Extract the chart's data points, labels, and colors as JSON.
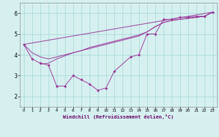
{
  "title": "",
  "xlabel": "Windchill (Refroidissement éolien,°C)",
  "ylabel": "",
  "bg_color": "#d6f0f0",
  "grid_color": "#a8d8d8",
  "line_color": "#993399",
  "xlim": [
    -0.5,
    23.5
  ],
  "ylim": [
    1.5,
    6.5
  ],
  "xticks": [
    0,
    1,
    2,
    3,
    4,
    5,
    6,
    7,
    8,
    9,
    10,
    11,
    12,
    13,
    14,
    15,
    16,
    17,
    18,
    19,
    20,
    21,
    22,
    23
  ],
  "yticks": [
    2,
    3,
    4,
    5,
    6
  ],
  "line_zigzag": {
    "x": [
      0,
      1,
      2,
      3,
      4,
      5,
      6,
      7,
      8,
      9,
      10,
      11,
      13,
      14,
      15,
      16,
      17,
      18,
      19,
      20,
      21,
      22,
      23
    ],
    "y": [
      4.5,
      3.8,
      3.6,
      3.5,
      2.5,
      2.5,
      3.0,
      2.8,
      2.6,
      2.3,
      2.4,
      3.2,
      3.9,
      4.0,
      5.0,
      5.0,
      5.7,
      5.7,
      5.8,
      5.8,
      5.85,
      5.85,
      6.05
    ]
  },
  "line_smooth1": {
    "x": [
      2,
      3,
      4,
      5,
      6,
      7,
      8,
      9,
      10,
      11,
      12,
      13,
      14,
      15,
      16,
      17,
      18,
      19,
      20,
      21,
      22,
      23
    ],
    "y": [
      3.55,
      3.6,
      3.8,
      3.95,
      4.1,
      4.2,
      4.35,
      4.45,
      4.55,
      4.65,
      4.75,
      4.85,
      4.95,
      5.1,
      5.35,
      5.55,
      5.65,
      5.7,
      5.75,
      5.8,
      5.85,
      6.05
    ]
  },
  "line_smooth2": {
    "x": [
      0,
      1,
      2,
      3,
      4,
      5,
      6,
      7,
      8,
      9,
      10,
      11,
      12,
      13,
      14,
      15,
      16,
      17,
      18,
      19,
      20,
      21,
      22,
      23
    ],
    "y": [
      4.5,
      4.1,
      3.9,
      3.8,
      3.9,
      4.0,
      4.1,
      4.2,
      4.3,
      4.4,
      4.5,
      4.6,
      4.7,
      4.8,
      4.9,
      5.1,
      5.35,
      5.55,
      5.65,
      5.7,
      5.75,
      5.8,
      5.85,
      6.05
    ]
  },
  "line_straight": {
    "x": [
      0,
      23
    ],
    "y": [
      4.5,
      6.05
    ]
  }
}
